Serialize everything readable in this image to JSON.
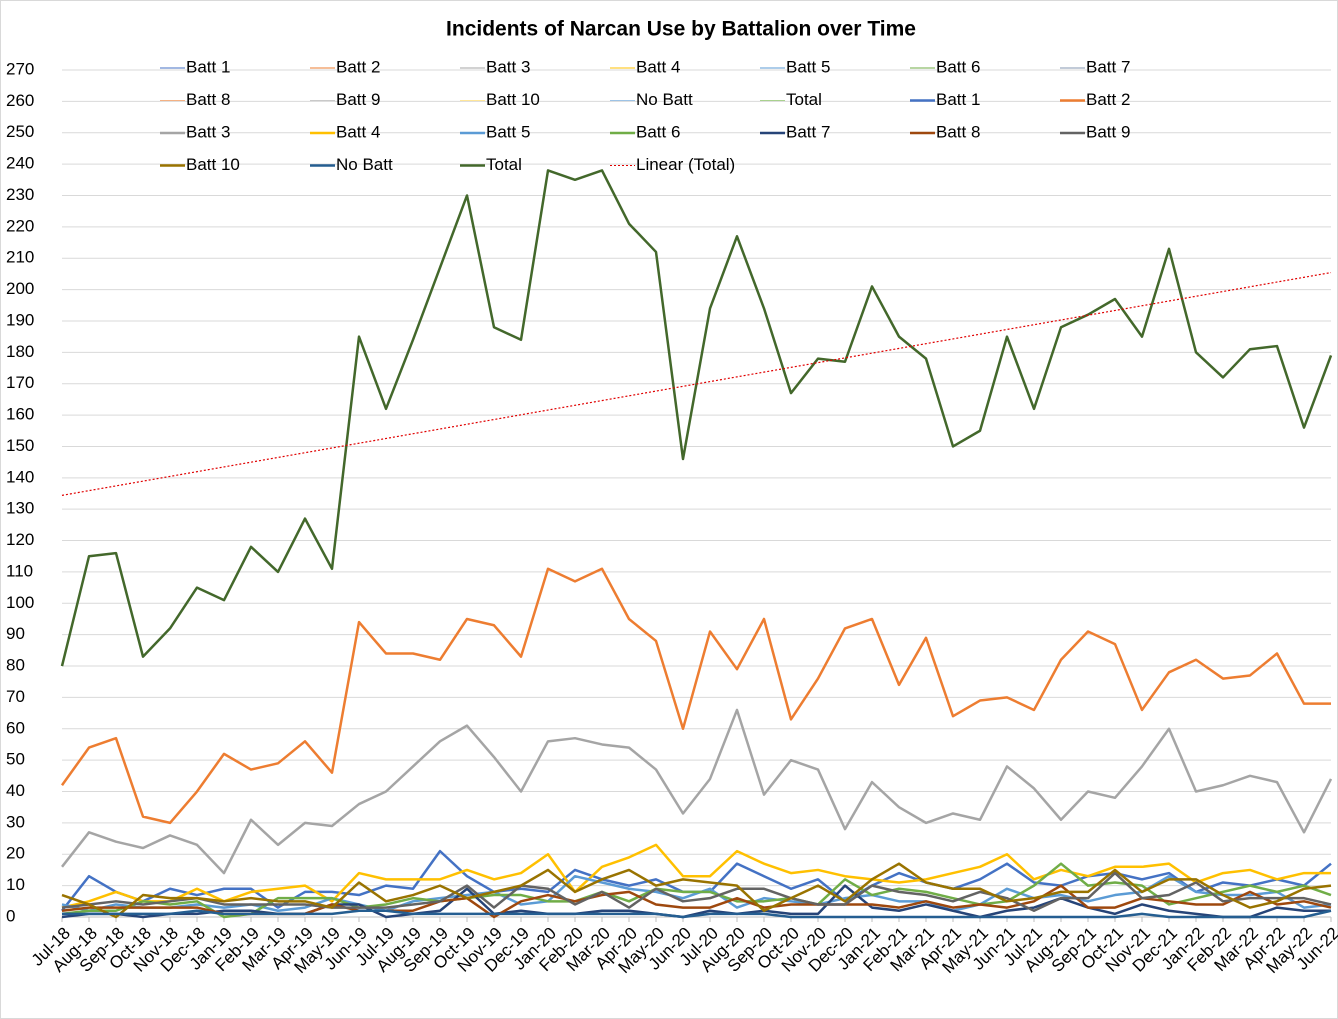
{
  "chart_data": {
    "type": "line",
    "title": "Incidents of Narcan Use by Battalion over Time",
    "categories": [
      "Jul-18",
      "Aug-18",
      "Sep-18",
      "Oct-18",
      "Nov-18",
      "Dec-18",
      "Jan-19",
      "Feb-19",
      "Mar-19",
      "Apr-19",
      "May-19",
      "Jun-19",
      "Jul-19",
      "Aug-19",
      "Sep-19",
      "Oct-19",
      "Nov-19",
      "Dec-19",
      "Jan-20",
      "Feb-20",
      "Mar-20",
      "Apr-20",
      "May-20",
      "Jun-20",
      "Jul-20",
      "Aug-20",
      "Sep-20",
      "Oct-20",
      "Nov-20",
      "Dec-20",
      "Jan-21",
      "Feb-21",
      "Mar-21",
      "Apr-21",
      "May-21",
      "Jun-21",
      "Jul-21",
      "Aug-21",
      "Sep-21",
      "Oct-21",
      "Nov-21",
      "Dec-21",
      "Jan-22",
      "Feb-22",
      "Mar-22",
      "Apr-22",
      "May-22",
      "Jun-22"
    ],
    "ylim": [
      0,
      270
    ],
    "yticks": [
      0,
      10,
      20,
      30,
      40,
      50,
      60,
      70,
      80,
      90,
      100,
      110,
      120,
      130,
      140,
      150,
      160,
      170,
      180,
      190,
      200,
      210,
      220,
      230,
      240,
      250,
      260,
      270
    ],
    "grid": true,
    "legend": "top",
    "series": [
      {
        "name": "Batt 1",
        "color": "#4472c4",
        "style": "thin"
      },
      {
        "name": "Batt 2",
        "color": "#ed7d31",
        "style": "thin"
      },
      {
        "name": "Batt 3",
        "color": "#a5a5a5",
        "style": "thin"
      },
      {
        "name": "Batt 4",
        "color": "#ffc000",
        "style": "thin"
      },
      {
        "name": "Batt 5",
        "color": "#5b9bd5",
        "style": "thin"
      },
      {
        "name": "Batt 6",
        "color": "#70ad47",
        "style": "thin"
      },
      {
        "name": "Batt 7",
        "color": "#8497b0",
        "style": "thin"
      },
      {
        "name": "Batt 8",
        "color": "#f4b183",
        "style": "thin"
      },
      {
        "name": "Batt 9",
        "color": "#c9c9c9",
        "style": "thin"
      },
      {
        "name": "Batt 10",
        "color": "#ffe699",
        "style": "thin"
      },
      {
        "name": "No Batt",
        "color": "#9dc3e6",
        "style": "thin"
      },
      {
        "name": "Total",
        "color": "#a9d18e",
        "style": "thin"
      },
      {
        "name": "Batt 1",
        "color": "#4472c4",
        "style": "thick",
        "values": [
          2,
          13,
          8,
          5,
          9,
          7,
          9,
          9,
          3,
          8,
          8,
          7,
          10,
          9,
          21,
          13,
          8,
          9,
          8,
          15,
          12,
          10,
          12,
          8,
          8,
          17,
          13,
          9,
          12,
          5,
          10,
          14,
          11,
          9,
          12,
          17,
          11,
          10,
          13,
          14,
          12,
          14,
          8,
          11,
          10,
          12,
          10,
          17
        ]
      },
      {
        "name": "Batt 2",
        "color": "#ed7d31",
        "style": "thick",
        "values": [
          42,
          54,
          57,
          32,
          30,
          40,
          52,
          47,
          49,
          56,
          46,
          94,
          84,
          84,
          82,
          95,
          93,
          83,
          111,
          107,
          111,
          95,
          88,
          60,
          91,
          79,
          95,
          63,
          76,
          92,
          95,
          74,
          89,
          64,
          69,
          70,
          66,
          82,
          91,
          87,
          66,
          78,
          82,
          76,
          77,
          84,
          68,
          68
        ]
      },
      {
        "name": "Batt 3",
        "color": "#a5a5a5",
        "style": "thick",
        "values": [
          16,
          27,
          24,
          22,
          26,
          23,
          14,
          31,
          23,
          30,
          29,
          36,
          40,
          48,
          56,
          61,
          51,
          40,
          56,
          57,
          55,
          54,
          47,
          33,
          44,
          66,
          39,
          50,
          47,
          28,
          43,
          35,
          30,
          33,
          31,
          48,
          41,
          31,
          40,
          38,
          48,
          60,
          40,
          42,
          45,
          43,
          27,
          44
        ]
      },
      {
        "name": "Batt 4",
        "color": "#ffc000",
        "style": "thick",
        "values": [
          3,
          5,
          8,
          5,
          5,
          9,
          5,
          8,
          9,
          10,
          5,
          14,
          12,
          12,
          12,
          15,
          12,
          14,
          20,
          8,
          16,
          19,
          23,
          13,
          13,
          21,
          17,
          14,
          15,
          13,
          12,
          11,
          12,
          14,
          16,
          20,
          12,
          15,
          13,
          16,
          16,
          17,
          11,
          14,
          15,
          12,
          14,
          14
        ]
      },
      {
        "name": "Batt 5",
        "color": "#5b9bd5",
        "style": "thick",
        "values": [
          4,
          2,
          4,
          3,
          3,
          4,
          3,
          4,
          2,
          3,
          6,
          4,
          2,
          5,
          6,
          7,
          8,
          4,
          5,
          13,
          11,
          9,
          8,
          6,
          9,
          3,
          6,
          5,
          4,
          6,
          7,
          5,
          5,
          2,
          4,
          9,
          6,
          7,
          5,
          7,
          8,
          13,
          8,
          7,
          7,
          8,
          3,
          4
        ]
      },
      {
        "name": "Batt 6",
        "color": "#70ad47",
        "style": "thick",
        "values": [
          1,
          2,
          2,
          5,
          4,
          5,
          0,
          1,
          6,
          6,
          6,
          3,
          4,
          6,
          5,
          6,
          7,
          7,
          5,
          5,
          8,
          5,
          9,
          8,
          8,
          5,
          5,
          6,
          4,
          12,
          7,
          9,
          8,
          6,
          4,
          5,
          10,
          17,
          10,
          11,
          10,
          4,
          6,
          8,
          10,
          8,
          10,
          7
        ]
      },
      {
        "name": "Batt 7",
        "color": "#264478",
        "style": "thick",
        "values": [
          0,
          1,
          1,
          0,
          1,
          1,
          2,
          2,
          1,
          1,
          4,
          4,
          0,
          1,
          2,
          9,
          1,
          2,
          1,
          1,
          2,
          2,
          1,
          0,
          2,
          1,
          2,
          1,
          1,
          10,
          3,
          2,
          4,
          2,
          0,
          2,
          3,
          6,
          3,
          1,
          4,
          2,
          1,
          0,
          0,
          3,
          2,
          2
        ]
      },
      {
        "name": "Batt 8",
        "color": "#9e480e",
        "style": "thick",
        "values": [
          2,
          3,
          3,
          3,
          3,
          3,
          1,
          1,
          1,
          1,
          4,
          2,
          2,
          2,
          5,
          6,
          0,
          5,
          7,
          5,
          7,
          8,
          4,
          3,
          3,
          6,
          3,
          4,
          4,
          4,
          4,
          3,
          5,
          3,
          4,
          3,
          5,
          10,
          3,
          3,
          6,
          5,
          4,
          4,
          8,
          4,
          5,
          3
        ]
      },
      {
        "name": "Batt 9",
        "color": "#636363",
        "style": "thick",
        "values": [
          3,
          4,
          5,
          4,
          5,
          6,
          4,
          4,
          4,
          4,
          3,
          3,
          3,
          4,
          5,
          10,
          3,
          10,
          9,
          4,
          8,
          3,
          9,
          5,
          6,
          9,
          9,
          6,
          4,
          4,
          10,
          8,
          7,
          5,
          8,
          6,
          2,
          6,
          6,
          14,
          6,
          7,
          11,
          5,
          6,
          6,
          6,
          4
        ]
      },
      {
        "name": "Batt 10",
        "color": "#997300",
        "style": "thick",
        "values": [
          7,
          4,
          0,
          7,
          6,
          6,
          5,
          6,
          5,
          5,
          3,
          11,
          5,
          7,
          10,
          6,
          8,
          10,
          15,
          8,
          12,
          15,
          10,
          12,
          11,
          10,
          2,
          6,
          10,
          5,
          12,
          17,
          11,
          9,
          9,
          5,
          6,
          8,
          8,
          15,
          8,
          12,
          12,
          7,
          3,
          5,
          9,
          10
        ]
      },
      {
        "name": "No Batt",
        "color": "#255e91",
        "style": "thick",
        "values": [
          1,
          1,
          1,
          1,
          1,
          2,
          1,
          1,
          1,
          1,
          1,
          2,
          2,
          1,
          1,
          1,
          1,
          1,
          1,
          1,
          1,
          1,
          1,
          0,
          1,
          1,
          1,
          0,
          0,
          0,
          0,
          0,
          0,
          0,
          0,
          0,
          0,
          0,
          0,
          0,
          1,
          0,
          0,
          0,
          0,
          0,
          0,
          2
        ]
      },
      {
        "name": "Total",
        "color": "#43682b",
        "style": "thick",
        "values": [
          80,
          115,
          116,
          83,
          92,
          105,
          101,
          118,
          110,
          127,
          111,
          185,
          162,
          184,
          207,
          230,
          188,
          184,
          238,
          235,
          238,
          221,
          212,
          146,
          194,
          217,
          194,
          167,
          178,
          177,
          201,
          185,
          178,
          150,
          155,
          185,
          162,
          188,
          192,
          197,
          185,
          213,
          180,
          172,
          181,
          182,
          156,
          179
        ]
      },
      {
        "name": "Linear (Total)",
        "color": "#e00000",
        "style": "dotted",
        "trend": "linear",
        "of": "Total"
      }
    ]
  }
}
